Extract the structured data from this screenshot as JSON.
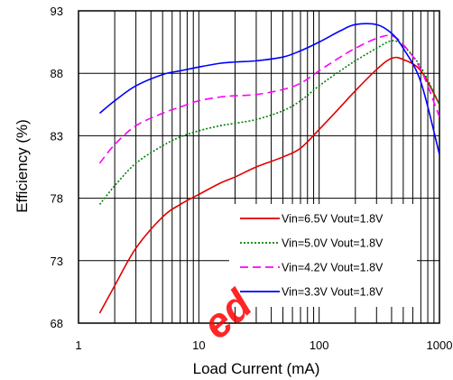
{
  "chart_data": {
    "type": "line",
    "xlabel": "Load Current (mA)",
    "ylabel": "Efficiency (%)",
    "xscale": "log",
    "xlim": [
      1,
      1000
    ],
    "ylim": [
      68,
      93
    ],
    "x_ticks": [
      "1",
      "10",
      "100",
      "1000"
    ],
    "y_ticks": [
      "68",
      "73",
      "78",
      "83",
      "88",
      "93"
    ],
    "grid": true,
    "legend_placement": "bottom-right",
    "series": [
      {
        "name": "Vin=6.5V Vout=1.8V",
        "color": "#e00000",
        "dash": "solid",
        "x": [
          1.5,
          2,
          3,
          5,
          7,
          10,
          15,
          20,
          30,
          50,
          70,
          100,
          150,
          200,
          300,
          400,
          500,
          700,
          1000
        ],
        "y": [
          68.8,
          71.0,
          74.0,
          76.5,
          77.5,
          78.3,
          79.2,
          79.7,
          80.5,
          81.3,
          82.0,
          83.5,
          85.3,
          86.6,
          88.3,
          89.2,
          89.1,
          88.2,
          85.5
        ]
      },
      {
        "name": "Vin=5.0V Vout=1.8V",
        "color": "#008000",
        "dash": "dotted",
        "x": [
          1.5,
          2,
          3,
          5,
          7,
          10,
          15,
          20,
          30,
          50,
          70,
          100,
          150,
          200,
          300,
          400,
          500,
          700,
          1000
        ],
        "y": [
          77.5,
          79.0,
          80.8,
          82.2,
          82.9,
          83.4,
          83.8,
          84.0,
          84.3,
          85.0,
          85.8,
          87.0,
          88.2,
          89.0,
          90.0,
          90.6,
          90.2,
          88.5,
          85.5
        ]
      },
      {
        "name": "Vin=4.2V Vout=1.8V",
        "color": "#ff00ff",
        "dash": "dashed",
        "x": [
          1.5,
          2,
          3,
          5,
          7,
          10,
          15,
          20,
          30,
          50,
          70,
          100,
          150,
          200,
          300,
          400,
          500,
          700,
          1000
        ],
        "y": [
          80.8,
          82.3,
          83.8,
          84.8,
          85.3,
          85.8,
          86.1,
          86.2,
          86.3,
          86.7,
          87.2,
          88.2,
          89.3,
          90.0,
          90.8,
          91.0,
          90.3,
          88.3,
          84.5
        ]
      },
      {
        "name": "Vin=3.3V Vout=1.8V",
        "color": "#0000ff",
        "dash": "solid",
        "x": [
          1.5,
          2,
          3,
          5,
          7,
          10,
          15,
          20,
          30,
          50,
          70,
          100,
          150,
          200,
          300,
          400,
          500,
          700,
          1000
        ],
        "y": [
          84.8,
          85.8,
          87.0,
          87.9,
          88.2,
          88.5,
          88.8,
          88.9,
          89.0,
          89.3,
          89.8,
          90.5,
          91.4,
          91.9,
          91.9,
          91.2,
          90.0,
          87.3,
          81.5
        ]
      }
    ]
  },
  "watermark": "ed"
}
